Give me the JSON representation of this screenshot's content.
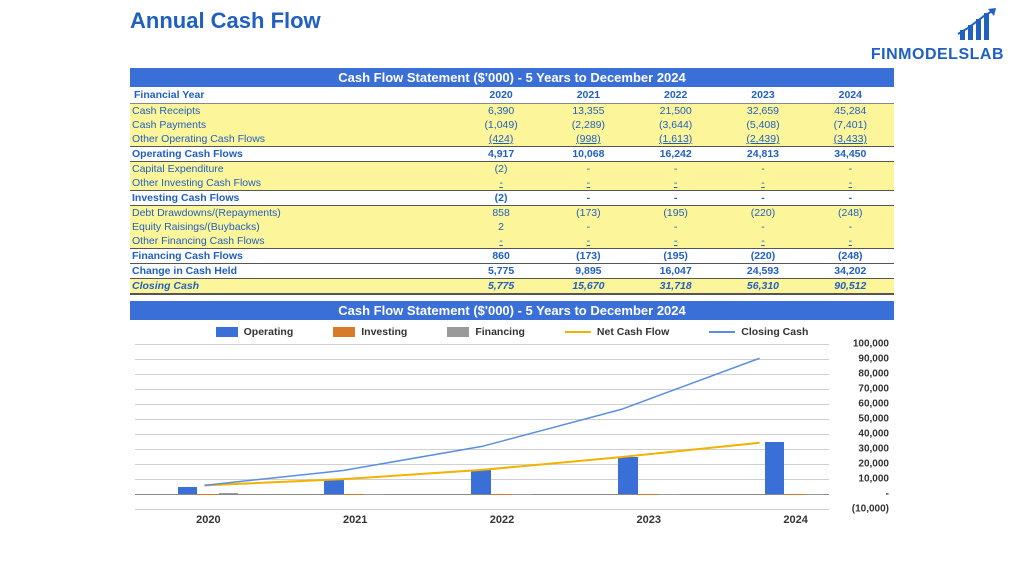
{
  "title": "Annual Cash Flow",
  "logo": {
    "text": "FINMODELSLAB",
    "color": "#2060c0"
  },
  "table": {
    "title": "Cash Flow Statement ($'000) - 5 Years to December 2024",
    "header_label": "Financial Year",
    "years": [
      "2020",
      "2021",
      "2022",
      "2023",
      "2024"
    ],
    "rows": [
      {
        "key": "receipts",
        "label": "Cash Receipts",
        "vals": [
          "6,390",
          "13,355",
          "21,500",
          "32,659",
          "45,284"
        ],
        "hl": true
      },
      {
        "key": "payments",
        "label": "Cash Payments",
        "vals": [
          "(1,049)",
          "(2,289)",
          "(3,644)",
          "(5,408)",
          "(7,401)"
        ],
        "hl": true
      },
      {
        "key": "other_op",
        "label": "Other Operating Cash Flows",
        "vals": [
          "(424)",
          "(998)",
          "(1,613)",
          "(2,439)",
          "(3,433)"
        ],
        "hl": true,
        "underline": true
      },
      {
        "key": "op_cf",
        "label": "Operating Cash Flows",
        "vals": [
          "4,917",
          "10,068",
          "16,242",
          "24,813",
          "34,450"
        ],
        "subtotal": true
      },
      {
        "key": "capex",
        "label": "Capital Expenditure",
        "vals": [
          "(2)",
          "-",
          "-",
          "-",
          "-"
        ],
        "hl": true
      },
      {
        "key": "other_inv",
        "label": "Other Investing Cash Flows",
        "vals": [
          "-",
          "-",
          "-",
          "-",
          "-"
        ],
        "hl": true,
        "underline": true
      },
      {
        "key": "inv_cf",
        "label": "Investing Cash Flows",
        "vals": [
          "(2)",
          "-",
          "-",
          "-",
          "-"
        ],
        "subtotal": true
      },
      {
        "key": "debt",
        "label": "Debt Drawdowns/(Repayments)",
        "vals": [
          "858",
          "(173)",
          "(195)",
          "(220)",
          "(248)"
        ],
        "hl": true
      },
      {
        "key": "equity",
        "label": "Equity Raisings/(Buybacks)",
        "vals": [
          "2",
          "-",
          "-",
          "-",
          "-"
        ],
        "hl": true
      },
      {
        "key": "other_fin",
        "label": "Other Financing Cash Flows",
        "vals": [
          "-",
          "-",
          "-",
          "-",
          "-"
        ],
        "hl": true,
        "underline": true
      },
      {
        "key": "fin_cf",
        "label": "Financing Cash Flows",
        "vals": [
          "860",
          "(173)",
          "(195)",
          "(220)",
          "(248)"
        ],
        "subtotal": true
      },
      {
        "key": "change",
        "label": "Change in Cash Held",
        "vals": [
          "5,775",
          "9,895",
          "16,047",
          "24,593",
          "34,202"
        ],
        "total": true
      },
      {
        "key": "closing",
        "label": "Closing Cash",
        "vals": [
          "5,775",
          "15,670",
          "31,718",
          "56,310",
          "90,512"
        ],
        "closing": true
      }
    ]
  },
  "chart": {
    "title": "Cash Flow Statement ($'000) - 5 Years to December 2024",
    "legend": [
      {
        "label": "Operating",
        "type": "box",
        "color": "#3a6fd8"
      },
      {
        "label": "Investing",
        "type": "box",
        "color": "#d97a2b"
      },
      {
        "label": "Financing",
        "type": "box",
        "color": "#9a9a9a"
      },
      {
        "label": "Net Cash Flow",
        "type": "line",
        "color": "#f2b200"
      },
      {
        "label": "Closing Cash",
        "type": "line",
        "color": "#5a8fe0"
      }
    ],
    "categories": [
      "2020",
      "2021",
      "2022",
      "2023",
      "2024"
    ],
    "ylim": [
      -10000,
      100000
    ],
    "ytick_step": 10000,
    "yticks": [
      "(10,000)",
      "-",
      "10,000",
      "20,000",
      "30,000",
      "40,000",
      "50,000",
      "60,000",
      "70,000",
      "80,000",
      "90,000",
      "100,000"
    ],
    "bar_series": [
      {
        "name": "Operating",
        "color": "#3a6fd8",
        "values": [
          4917,
          10068,
          16242,
          24813,
          34450
        ]
      },
      {
        "name": "Investing",
        "color": "#d97a2b",
        "values": [
          -2,
          0,
          0,
          0,
          0
        ]
      },
      {
        "name": "Financing",
        "color": "#9a9a9a",
        "values": [
          860,
          -173,
          -195,
          -220,
          -248
        ]
      }
    ],
    "line_series": [
      {
        "name": "Net Cash Flow",
        "color": "#f2b200",
        "width": 2,
        "values": [
          5775,
          9895,
          16047,
          24593,
          34202
        ]
      },
      {
        "name": "Closing Cash",
        "color": "#5a8fe0",
        "width": 1.5,
        "values": [
          5775,
          15670,
          31718,
          56310,
          90512
        ]
      }
    ],
    "bar_cluster_width": 0.42,
    "grid_color": "#d0d0d0",
    "axis_color": "#888",
    "label_fontsize": 11
  }
}
